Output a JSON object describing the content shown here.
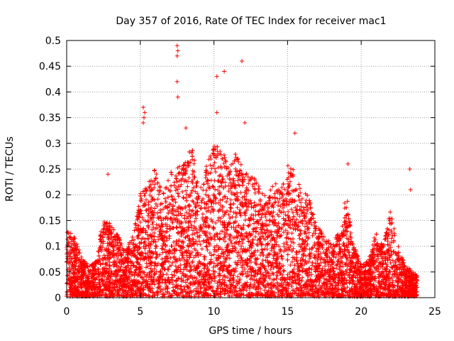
{
  "chart_data": {
    "type": "scatter",
    "title": "Day 357 of 2016, Rate Of TEC Index for receiver mac1",
    "xlabel": "GPS time / hours",
    "ylabel": "ROTI / TECUs",
    "xlim": [
      0,
      25
    ],
    "ylim": [
      0,
      0.5
    ],
    "xticks": [
      0,
      5,
      10,
      15,
      20,
      25
    ],
    "yticks": [
      0,
      0.05,
      0.1,
      0.15,
      0.2,
      0.25,
      0.3,
      0.35,
      0.4,
      0.45,
      0.5
    ],
    "xtick_labels": [
      "0",
      "5",
      "10",
      "15",
      "20",
      "25"
    ],
    "ytick_labels": [
      "0",
      "0.05",
      "0.1",
      "0.15",
      "0.2",
      "0.25",
      "0.3",
      "0.35",
      "0.4",
      "0.45",
      "0.5"
    ],
    "grid": true,
    "marker": "+",
    "color": "#ff0000",
    "envelope": [
      [
        0.0,
        0.13
      ],
      [
        0.5,
        0.12
      ],
      [
        1.0,
        0.08
      ],
      [
        1.5,
        0.06
      ],
      [
        2.0,
        0.07
      ],
      [
        2.5,
        0.16
      ],
      [
        3.0,
        0.14
      ],
      [
        3.5,
        0.12
      ],
      [
        4.0,
        0.09
      ],
      [
        4.5,
        0.12
      ],
      [
        5.0,
        0.2
      ],
      [
        5.5,
        0.22
      ],
      [
        6.0,
        0.25
      ],
      [
        6.5,
        0.2
      ],
      [
        7.0,
        0.24
      ],
      [
        7.5,
        0.25
      ],
      [
        8.0,
        0.26
      ],
      [
        8.5,
        0.3
      ],
      [
        9.0,
        0.2
      ],
      [
        9.5,
        0.26
      ],
      [
        10.0,
        0.3
      ],
      [
        10.5,
        0.3
      ],
      [
        11.0,
        0.25
      ],
      [
        11.5,
        0.28
      ],
      [
        12.0,
        0.25
      ],
      [
        12.5,
        0.24
      ],
      [
        13.0,
        0.22
      ],
      [
        13.5,
        0.2
      ],
      [
        14.0,
        0.22
      ],
      [
        14.5,
        0.22
      ],
      [
        15.0,
        0.26
      ],
      [
        15.5,
        0.25
      ],
      [
        16.0,
        0.2
      ],
      [
        16.5,
        0.2
      ],
      [
        17.0,
        0.14
      ],
      [
        17.5,
        0.12
      ],
      [
        18.0,
        0.1
      ],
      [
        18.5,
        0.13
      ],
      [
        19.0,
        0.2
      ],
      [
        19.5,
        0.1
      ],
      [
        20.0,
        0.06
      ],
      [
        20.5,
        0.07
      ],
      [
        21.0,
        0.13
      ],
      [
        21.5,
        0.1
      ],
      [
        22.0,
        0.17
      ],
      [
        22.5,
        0.1
      ],
      [
        23.0,
        0.06
      ],
      [
        23.5,
        0.05
      ],
      [
        23.8,
        0.04
      ]
    ],
    "outliers": [
      [
        5.2,
        0.37
      ],
      [
        5.25,
        0.35
      ],
      [
        5.3,
        0.36
      ],
      [
        5.2,
        0.34
      ],
      [
        7.5,
        0.49
      ],
      [
        7.55,
        0.48
      ],
      [
        7.5,
        0.47
      ],
      [
        7.5,
        0.42
      ],
      [
        7.55,
        0.39
      ],
      [
        10.2,
        0.43
      ],
      [
        10.7,
        0.44
      ],
      [
        11.9,
        0.46
      ],
      [
        10.2,
        0.36
      ],
      [
        12.1,
        0.34
      ],
      [
        15.5,
        0.32
      ],
      [
        23.3,
        0.25
      ],
      [
        23.35,
        0.21
      ],
      [
        2.8,
        0.24
      ],
      [
        19.1,
        0.26
      ],
      [
        8.1,
        0.33
      ]
    ]
  }
}
